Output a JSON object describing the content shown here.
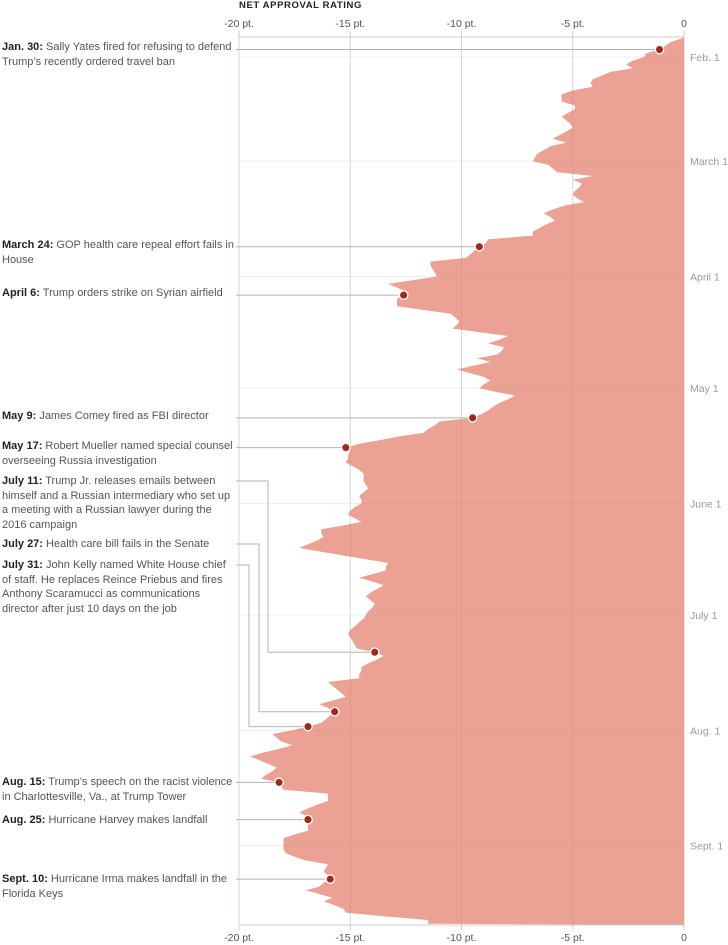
{
  "chart_data": {
    "type": "area",
    "title": "NET APPROVAL RATING",
    "orientation": "vertical-time",
    "x_axis": {
      "range": [
        -20,
        0
      ],
      "ticks": [
        -20,
        -15,
        -10,
        -5,
        0
      ],
      "tick_labels": [
        "-20 pt.",
        "-15 pt.",
        "-10 pt.",
        "-5 pt.",
        "0"
      ],
      "position": "top-and-bottom"
    },
    "y_axis": {
      "range": [
        "2017-01-27",
        "2017-09-22"
      ],
      "ticks": [
        "2017-02-01",
        "2017-03-01",
        "2017-04-01",
        "2017-05-01",
        "2017-06-01",
        "2017-07-01",
        "2017-08-01",
        "2017-09-01"
      ],
      "tick_labels": [
        "Feb. 1",
        "March 1",
        "April 1",
        "May 1",
        "June 1",
        "July 1",
        "Aug. 1",
        "Sept. 1"
      ],
      "position": "right"
    },
    "grid": true,
    "colors": {
      "area": "#eba193",
      "dot": "#9e2a1a",
      "grid": "#e6e6e6",
      "leader": "#b3b3b3"
    },
    "series": [
      [
        "2017-01-27",
        -0.1
      ],
      [
        "2017-01-28",
        -0.6
      ],
      [
        "2017-01-30",
        -1.1
      ],
      [
        "2017-01-31",
        -1.7
      ],
      [
        "2017-02-01",
        -1.8
      ],
      [
        "2017-02-02",
        -2.3
      ],
      [
        "2017-02-03",
        -2.6
      ],
      [
        "2017-02-04",
        -2.3
      ],
      [
        "2017-02-05",
        -3.3
      ],
      [
        "2017-02-06",
        -3.7
      ],
      [
        "2017-02-07",
        -4.1
      ],
      [
        "2017-02-08",
        -4.2
      ],
      [
        "2017-02-09",
        -4.1
      ],
      [
        "2017-02-10",
        -5.0
      ],
      [
        "2017-02-11",
        -5.5
      ],
      [
        "2017-02-12",
        -5.5
      ],
      [
        "2017-02-13",
        -5.5
      ],
      [
        "2017-02-14",
        -4.9
      ],
      [
        "2017-02-15",
        -4.9
      ],
      [
        "2017-02-17",
        -5.5
      ],
      [
        "2017-02-18",
        -5.3
      ],
      [
        "2017-02-19",
        -5.1
      ],
      [
        "2017-02-20",
        -5.0
      ],
      [
        "2017-02-23",
        -5.9
      ],
      [
        "2017-02-24",
        -5.3
      ],
      [
        "2017-02-25",
        -6.0
      ],
      [
        "2017-02-26",
        -6.3
      ],
      [
        "2017-02-27",
        -6.6
      ],
      [
        "2017-03-01",
        -6.8
      ],
      [
        "2017-03-02",
        -6.1
      ],
      [
        "2017-03-04",
        -5.7
      ],
      [
        "2017-03-05",
        -4.1
      ],
      [
        "2017-03-06",
        -5.0
      ],
      [
        "2017-03-07",
        -4.6
      ],
      [
        "2017-03-08",
        -4.7
      ],
      [
        "2017-03-09",
        -4.9
      ],
      [
        "2017-03-10",
        -5.0
      ],
      [
        "2017-03-11",
        -4.8
      ],
      [
        "2017-03-12",
        -4.5
      ],
      [
        "2017-03-13",
        -5.4
      ],
      [
        "2017-03-14",
        -5.9
      ],
      [
        "2017-03-15",
        -6.3
      ],
      [
        "2017-03-16",
        -6.0
      ],
      [
        "2017-03-17",
        -5.8
      ],
      [
        "2017-03-18",
        -6.2
      ],
      [
        "2017-03-19",
        -6.5
      ],
      [
        "2017-03-20",
        -6.8
      ],
      [
        "2017-03-21",
        -6.8
      ],
      [
        "2017-03-22",
        -8.8
      ],
      [
        "2017-03-23",
        -8.9
      ],
      [
        "2017-03-24",
        -9.2
      ],
      [
        "2017-03-25",
        -9.4
      ],
      [
        "2017-03-26",
        -9.6
      ],
      [
        "2017-03-27",
        -9.8
      ],
      [
        "2017-03-28",
        -11.4
      ],
      [
        "2017-03-29",
        -11.4
      ],
      [
        "2017-03-30",
        -11.3
      ],
      [
        "2017-03-31",
        -11.2
      ],
      [
        "2017-04-01",
        -11.1
      ],
      [
        "2017-04-02",
        -12.2
      ],
      [
        "2017-04-03",
        -13.3
      ],
      [
        "2017-04-04",
        -12.9
      ],
      [
        "2017-04-05",
        -12.5
      ],
      [
        "2017-04-06",
        -12.6
      ],
      [
        "2017-04-07",
        -12.9
      ],
      [
        "2017-04-08",
        -12.9
      ],
      [
        "2017-04-09",
        -12.9
      ],
      [
        "2017-04-10",
        -11.7
      ],
      [
        "2017-04-11",
        -10.5
      ],
      [
        "2017-04-12",
        -10.3
      ],
      [
        "2017-04-13",
        -10.1
      ],
      [
        "2017-04-14",
        -10.2
      ],
      [
        "2017-04-15",
        -10.4
      ],
      [
        "2017-04-16",
        -9.2
      ],
      [
        "2017-04-17",
        -7.9
      ],
      [
        "2017-04-18",
        -8.3
      ],
      [
        "2017-04-19",
        -8.8
      ],
      [
        "2017-04-20",
        -8.1
      ],
      [
        "2017-04-21",
        -8.2
      ],
      [
        "2017-04-22",
        -8.4
      ],
      [
        "2017-04-23",
        -9.3
      ],
      [
        "2017-04-24",
        -8.7
      ],
      [
        "2017-04-25",
        -9.5
      ],
      [
        "2017-04-26",
        -10.2
      ],
      [
        "2017-04-27",
        -9.6
      ],
      [
        "2017-04-28",
        -9.0
      ],
      [
        "2017-04-29",
        -8.7
      ],
      [
        "2017-04-30",
        -9.0
      ],
      [
        "2017-05-01",
        -9.2
      ],
      [
        "2017-05-02",
        -8.5
      ],
      [
        "2017-05-03",
        -7.6
      ],
      [
        "2017-05-04",
        -7.9
      ],
      [
        "2017-05-05",
        -8.3
      ],
      [
        "2017-05-06",
        -8.6
      ],
      [
        "2017-05-07",
        -8.8
      ],
      [
        "2017-05-08",
        -9.1
      ],
      [
        "2017-05-09",
        -9.5
      ],
      [
        "2017-05-10",
        -11.0
      ],
      [
        "2017-05-11",
        -11.2
      ],
      [
        "2017-05-12",
        -11.5
      ],
      [
        "2017-05-13",
        -11.7
      ],
      [
        "2017-05-14",
        -12.8
      ],
      [
        "2017-05-15",
        -13.7
      ],
      [
        "2017-05-16",
        -14.6
      ],
      [
        "2017-05-17",
        -15.2
      ],
      [
        "2017-05-18",
        -15.0
      ],
      [
        "2017-05-19",
        -15.1
      ],
      [
        "2017-05-20",
        -15.1
      ],
      [
        "2017-05-21",
        -15.2
      ],
      [
        "2017-05-22",
        -14.9
      ],
      [
        "2017-05-23",
        -14.6
      ],
      [
        "2017-05-24",
        -14.4
      ],
      [
        "2017-05-25",
        -14.4
      ],
      [
        "2017-05-26",
        -14.4
      ],
      [
        "2017-05-27",
        -14.3
      ],
      [
        "2017-05-28",
        -14.2
      ],
      [
        "2017-05-29",
        -14.4
      ],
      [
        "2017-05-30",
        -14.6
      ],
      [
        "2017-05-31",
        -14.5
      ],
      [
        "2017-06-01",
        -14.5
      ],
      [
        "2017-06-02",
        -14.8
      ],
      [
        "2017-06-03",
        -15.0
      ],
      [
        "2017-06-04",
        -15.1
      ],
      [
        "2017-06-05",
        -14.8
      ],
      [
        "2017-06-06",
        -14.5
      ],
      [
        "2017-06-07",
        -15.4
      ],
      [
        "2017-06-08",
        -16.3
      ],
      [
        "2017-06-09",
        -16.3
      ],
      [
        "2017-06-10",
        -16.2
      ],
      [
        "2017-06-11",
        -16.5
      ],
      [
        "2017-06-12",
        -16.9
      ],
      [
        "2017-06-13",
        -17.3
      ],
      [
        "2017-06-14",
        -16.3
      ],
      [
        "2017-06-15",
        -15.3
      ],
      [
        "2017-06-16",
        -14.3
      ],
      [
        "2017-06-17",
        -13.3
      ],
      [
        "2017-06-18",
        -13.4
      ],
      [
        "2017-06-19",
        -13.4
      ],
      [
        "2017-06-20",
        -14.0
      ],
      [
        "2017-06-21",
        -14.6
      ],
      [
        "2017-06-22",
        -14.0
      ],
      [
        "2017-06-23",
        -13.5
      ],
      [
        "2017-06-24",
        -13.8
      ],
      [
        "2017-06-25",
        -14.1
      ],
      [
        "2017-06-26",
        -14.3
      ],
      [
        "2017-06-27",
        -14.1
      ],
      [
        "2017-06-28",
        -13.9
      ],
      [
        "2017-06-29",
        -14.0
      ],
      [
        "2017-06-30",
        -14.2
      ],
      [
        "2017-07-01",
        -14.3
      ],
      [
        "2017-07-02",
        -14.4
      ],
      [
        "2017-07-03",
        -14.6
      ],
      [
        "2017-07-04",
        -14.8
      ],
      [
        "2017-07-05",
        -15.0
      ],
      [
        "2017-07-06",
        -15.1
      ],
      [
        "2017-07-07",
        -15.0
      ],
      [
        "2017-07-08",
        -14.9
      ],
      [
        "2017-07-09",
        -14.8
      ],
      [
        "2017-07-10",
        -14.7
      ],
      [
        "2017-07-11",
        -13.9
      ],
      [
        "2017-07-12",
        -13.5
      ],
      [
        "2017-07-13",
        -13.8
      ],
      [
        "2017-07-14",
        -14.2
      ],
      [
        "2017-07-15",
        -14.5
      ],
      [
        "2017-07-16",
        -14.5
      ],
      [
        "2017-07-17",
        -14.6
      ],
      [
        "2017-07-18",
        -14.6
      ],
      [
        "2017-07-19",
        -16.0
      ],
      [
        "2017-07-20",
        -15.8
      ],
      [
        "2017-07-21",
        -15.6
      ],
      [
        "2017-07-22",
        -15.4
      ],
      [
        "2017-07-23",
        -15.2
      ],
      [
        "2017-07-24",
        -15.8
      ],
      [
        "2017-07-25",
        -16.4
      ],
      [
        "2017-07-26",
        -16.0
      ],
      [
        "2017-07-27",
        -15.7
      ],
      [
        "2017-07-28",
        -15.9
      ],
      [
        "2017-07-29",
        -16.1
      ],
      [
        "2017-07-30",
        -16.3
      ],
      [
        "2017-07-31",
        -16.9
      ],
      [
        "2017-08-01",
        -17.6
      ],
      [
        "2017-08-02",
        -18.5
      ],
      [
        "2017-08-03",
        -18.3
      ],
      [
        "2017-08-04",
        -18.1
      ],
      [
        "2017-08-05",
        -17.6
      ],
      [
        "2017-08-06",
        -18.2
      ],
      [
        "2017-08-07",
        -18.9
      ],
      [
        "2017-08-08",
        -19.5
      ],
      [
        "2017-08-09",
        -19.1
      ],
      [
        "2017-08-10",
        -18.7
      ],
      [
        "2017-08-11",
        -18.3
      ],
      [
        "2017-08-12",
        -18.5
      ],
      [
        "2017-08-13",
        -18.8
      ],
      [
        "2017-08-14",
        -19.0
      ],
      [
        "2017-08-15",
        -18.2
      ],
      [
        "2017-08-16",
        -18.1
      ],
      [
        "2017-08-17",
        -18.0
      ],
      [
        "2017-08-18",
        -16.0
      ],
      [
        "2017-08-19",
        -16.0
      ],
      [
        "2017-08-20",
        -16.0
      ],
      [
        "2017-08-21",
        -16.5
      ],
      [
        "2017-08-22",
        -16.9
      ],
      [
        "2017-08-23",
        -17.3
      ],
      [
        "2017-08-24",
        -17.0
      ],
      [
        "2017-08-25",
        -16.9
      ],
      [
        "2017-08-26",
        -16.9
      ],
      [
        "2017-08-27",
        -16.9
      ],
      [
        "2017-08-28",
        -16.9
      ],
      [
        "2017-08-29",
        -17.5
      ],
      [
        "2017-08-30",
        -18.0
      ],
      [
        "2017-08-31",
        -18.0
      ],
      [
        "2017-09-01",
        -18.0
      ],
      [
        "2017-09-02",
        -18.0
      ],
      [
        "2017-09-03",
        -17.9
      ],
      [
        "2017-09-04",
        -17.5
      ],
      [
        "2017-09-05",
        -17.0
      ],
      [
        "2017-09-06",
        -16.0
      ],
      [
        "2017-09-07",
        -16.1
      ],
      [
        "2017-09-08",
        -16.2
      ],
      [
        "2017-09-09",
        -16.0
      ],
      [
        "2017-09-10",
        -15.9
      ],
      [
        "2017-09-11",
        -16.2
      ],
      [
        "2017-09-12",
        -16.4
      ],
      [
        "2017-09-13",
        -17.0
      ],
      [
        "2017-09-14",
        -16.4
      ],
      [
        "2017-09-15",
        -15.8
      ],
      [
        "2017-09-16",
        -16.2
      ],
      [
        "2017-09-17",
        -15.7
      ],
      [
        "2017-09-18",
        -15.3
      ],
      [
        "2017-09-19",
        -15.2
      ],
      [
        "2017-09-20",
        -13.5
      ],
      [
        "2017-09-21",
        -11.5
      ],
      [
        "2017-09-22",
        -11.5
      ]
    ],
    "events": [
      {
        "date": "2017-01-30",
        "value": -1.1,
        "label": "Jan. 30:",
        "text": "Sally Yates fired for refusing to defend Trump’s recently ordered travel ban"
      },
      {
        "date": "2017-03-24",
        "value": -9.2,
        "label": "March 24:",
        "text": "GOP health care repeal effort fails in House"
      },
      {
        "date": "2017-04-06",
        "value": -12.6,
        "label": "April 6:",
        "text": "Trump orders strike on Syrian airfield"
      },
      {
        "date": "2017-05-09",
        "value": -9.5,
        "label": "May 9:",
        "text": "James Comey fired as FBI director"
      },
      {
        "date": "2017-05-17",
        "value": -15.2,
        "label": "May 17:",
        "text": "Robert Mueller named special counsel overseeing Russia investigation"
      },
      {
        "date": "2017-07-11",
        "value": -13.9,
        "label": "July 11:",
        "text": "Trump Jr. releases emails between himself and a Russian intermediary who set up a meeting with a Russian lawyer during the 2016 campaign"
      },
      {
        "date": "2017-07-27",
        "value": -15.7,
        "label": "July 27:",
        "text": "Health care bill fails in the Senate"
      },
      {
        "date": "2017-07-31",
        "value": -16.9,
        "label": "July 31:",
        "text": "John Kelly named White House chief of staff. He replaces Reince Priebus and fires Anthony Scaramucci as communications director after just 10 days on the job"
      },
      {
        "date": "2017-08-15",
        "value": -18.2,
        "label": "Aug. 15:",
        "text": "Trump’s speech on the racist violence in Charlottesville, Va., at Trump Tower"
      },
      {
        "date": "2017-08-25",
        "value": -16.9,
        "label": "Aug. 25:",
        "text": "Hurricane Harvey makes landfall"
      },
      {
        "date": "2017-09-10",
        "value": -15.9,
        "label": "Sept. 10:",
        "text": "Hurricane Irma makes landfall in the Florida Keys"
      }
    ]
  }
}
